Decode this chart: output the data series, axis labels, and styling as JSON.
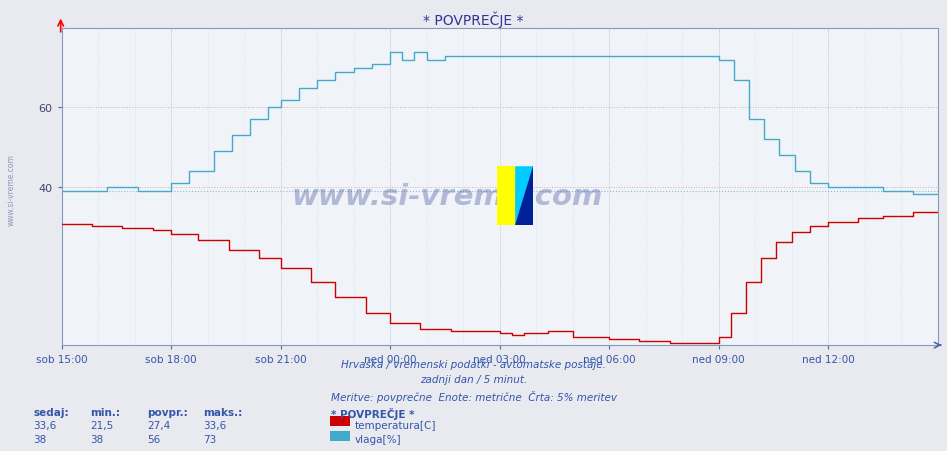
{
  "title": "* POVPREČJE *",
  "bg_color": "#e8eaf0",
  "plot_bg_color": "#f0f4f8",
  "x_labels": [
    "sob 15:00",
    "sob 18:00",
    "sob 21:00",
    "ned 00:00",
    "ned 03:00",
    "ned 06:00",
    "ned 09:00",
    "ned 12:00"
  ],
  "x_ticks": [
    0,
    36,
    72,
    108,
    144,
    180,
    216,
    252
  ],
  "total_points": 289,
  "ylim_min": 0,
  "ylim_max": 80,
  "ytick_labels": [
    "40",
    "60"
  ],
  "ytick_vals": [
    40,
    60
  ],
  "temp_color": "#cc0000",
  "humid_color": "#44aacc",
  "avg_line_color": "#88bbdd",
  "grid_h_color": "#ddbbbb",
  "grid_v_color": "#ccccdd",
  "footer1": "Hrvaška / vremenski podatki - avtomatske postaje.",
  "footer2": "zadnji dan / 5 minut.",
  "footer3": "Meritve: povprečne  Enote: metrične  Črta: 5% meritev",
  "text_color": "#3355aa",
  "watermark": "www.si-vreme.com",
  "legend_title": "* POVPREČJE *",
  "legend_temp_label": "temperatura[C]",
  "legend_humid_label": "vlaga[%]",
  "stats_headers": [
    "sedaj:",
    "min.:",
    "povpr.:",
    "maks.:"
  ],
  "stats_temp": [
    "33,6",
    "21,5",
    "27,4",
    "33,6"
  ],
  "stats_humid": [
    "38",
    "38",
    "56",
    "73"
  ],
  "sidebar_text": "www.si-vreme.com",
  "title_color": "#333399",
  "axis_color": "#5566aa",
  "spine_color": "#8899bb"
}
